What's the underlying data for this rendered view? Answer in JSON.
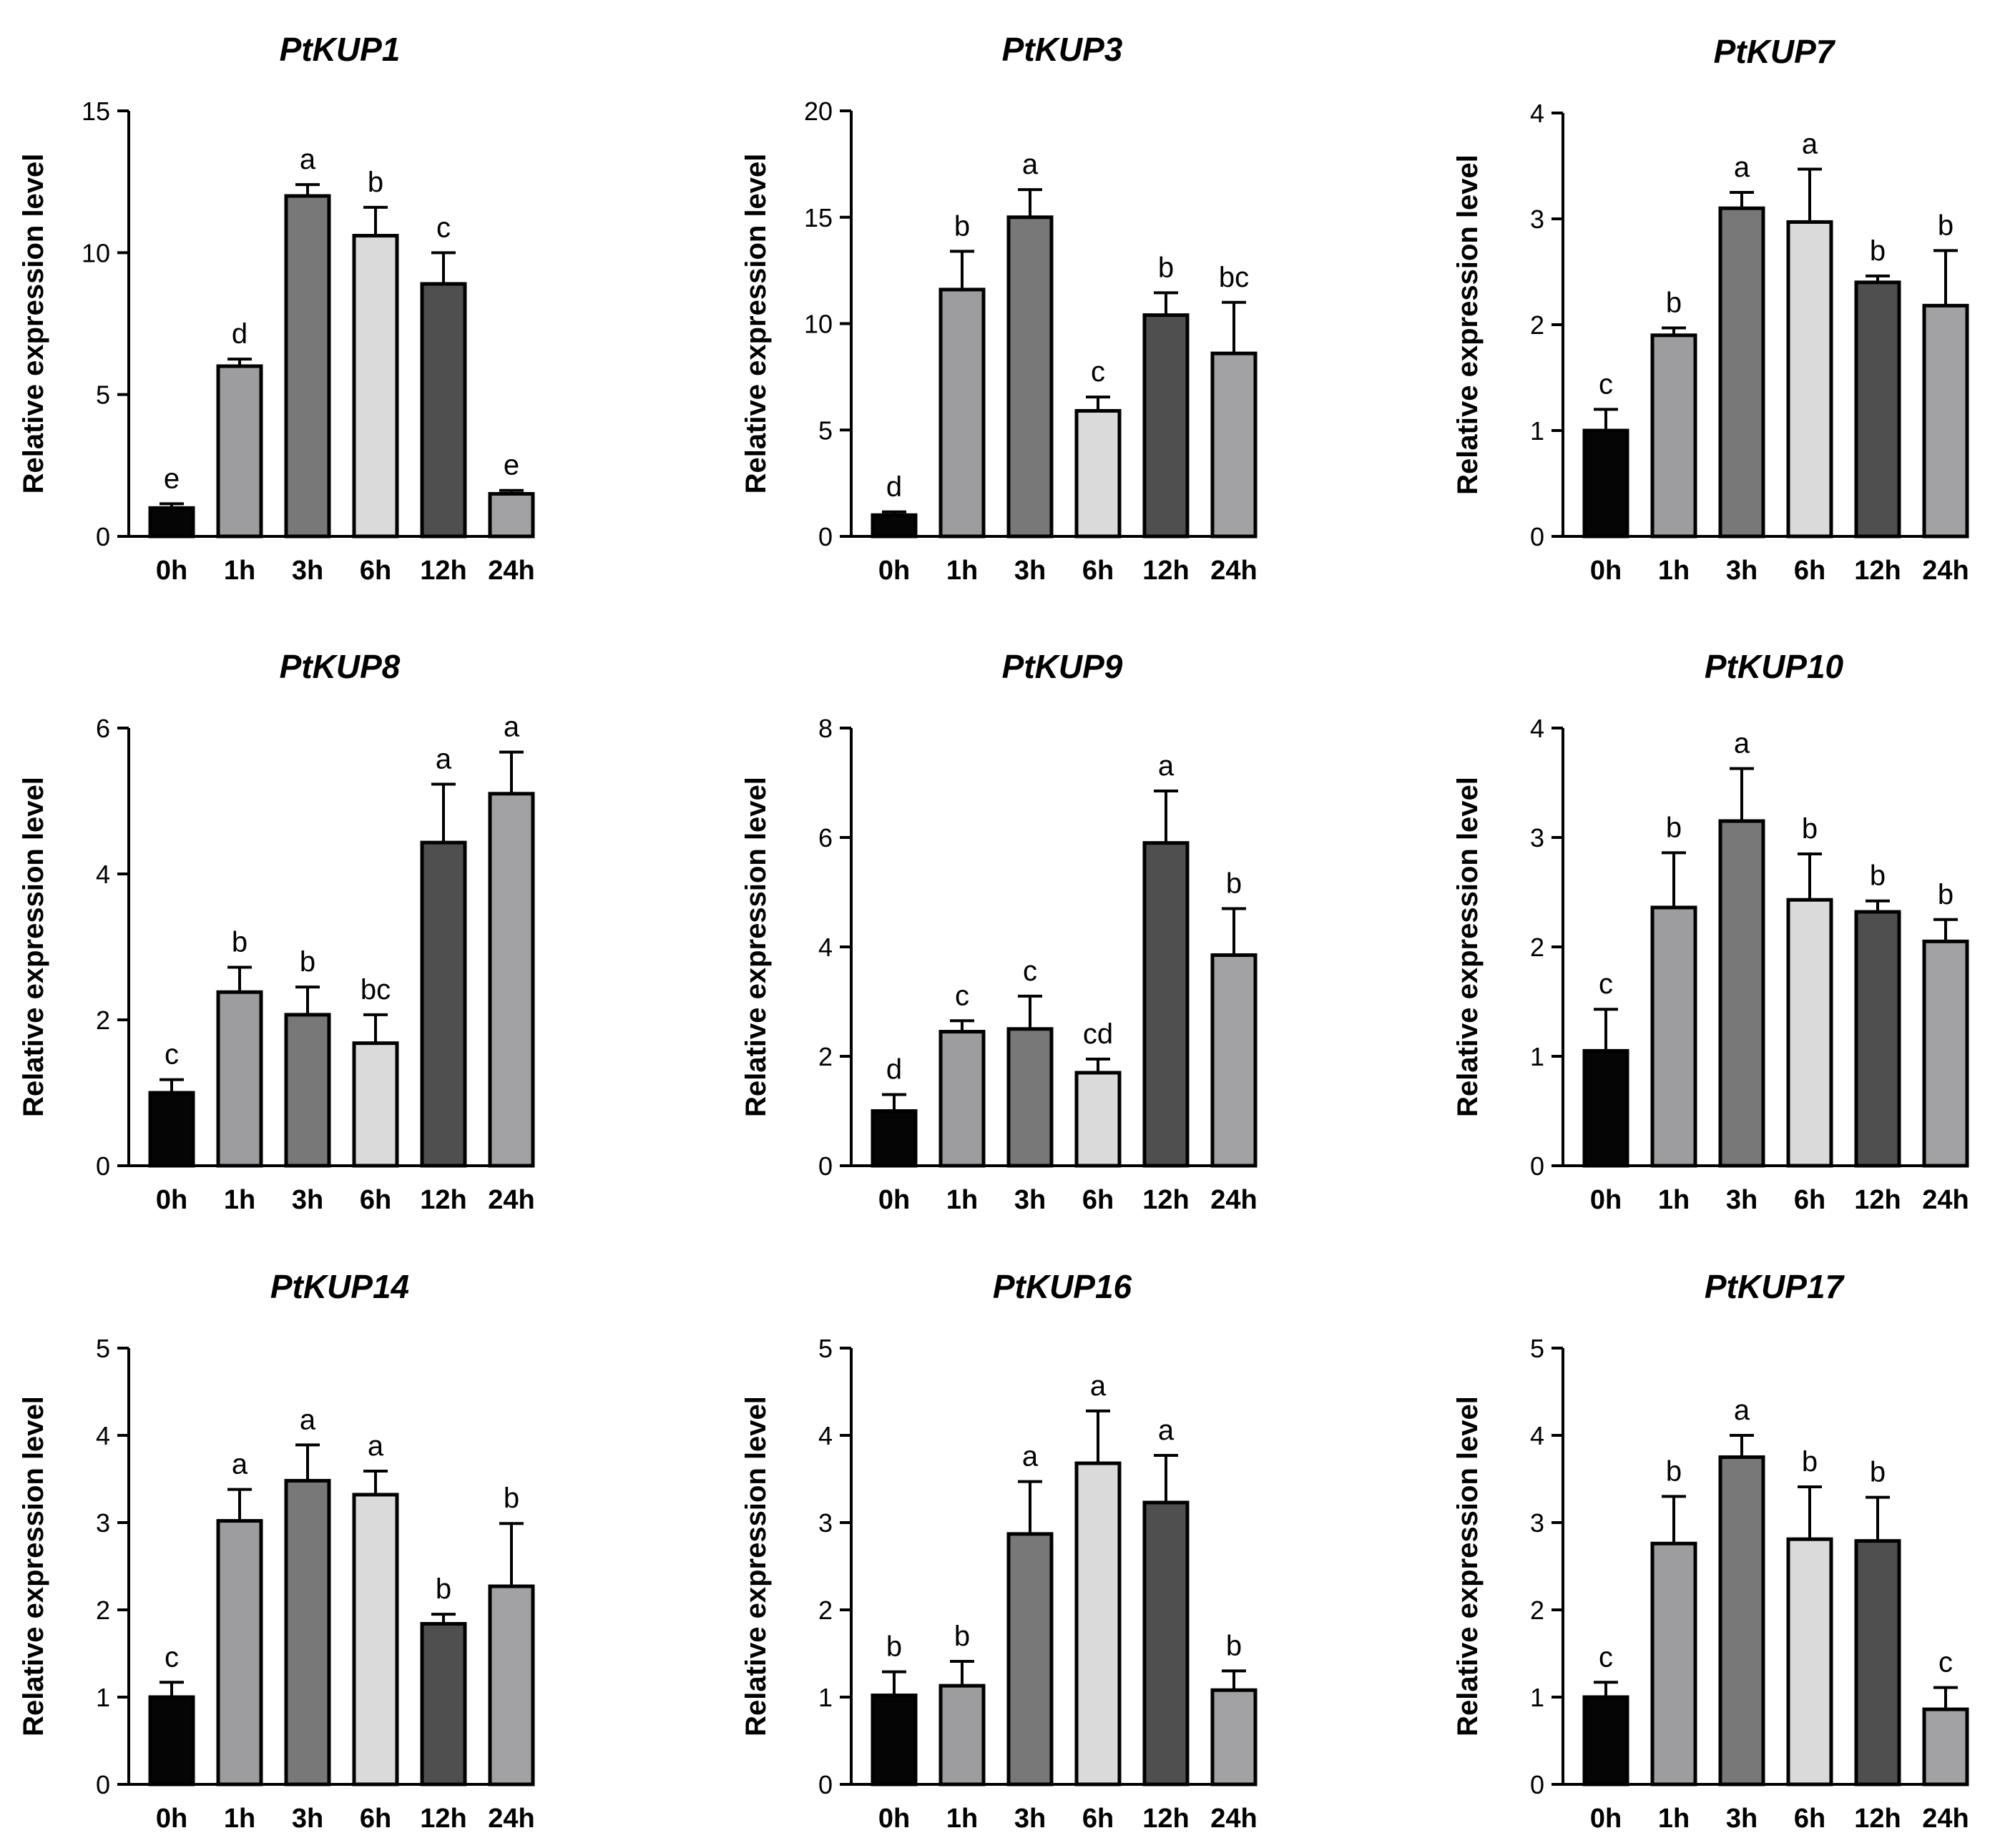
{
  "bar_colors": [
    "#050505",
    "#9d9d9f",
    "#787878",
    "#dadada",
    "#4f4f4f",
    "#a2a2a4"
  ],
  "chart_data": [
    {
      "type": "bar",
      "title": "PtKUP1",
      "xlabel": "",
      "ylabel": "Relative expression level",
      "categories": [
        "0h",
        "1h",
        "3h",
        "6h",
        "12h",
        "24h"
      ],
      "values": [
        1.0,
        6.0,
        12.0,
        10.6,
        8.9,
        1.5
      ],
      "errors": [
        0.15,
        0.25,
        0.4,
        1.0,
        1.1,
        0.12
      ],
      "letters": [
        "e",
        "d",
        "a",
        "b",
        "c",
        "e"
      ],
      "ylim": [
        0,
        15
      ],
      "yticks": [
        "0",
        "5",
        "10",
        "15"
      ],
      "grid": false
    },
    {
      "type": "bar",
      "title": "PtKUP3",
      "xlabel": "",
      "ylabel": "Relative expression level",
      "categories": [
        "0h",
        "1h",
        "3h",
        "6h",
        "12h",
        "24h"
      ],
      "values": [
        1.0,
        11.6,
        15.0,
        5.9,
        10.4,
        8.6
      ],
      "errors": [
        0.15,
        1.8,
        1.3,
        0.65,
        1.05,
        2.4
      ],
      "letters": [
        "d",
        "b",
        "a",
        "c",
        "b",
        "bc"
      ],
      "ylim": [
        0,
        20
      ],
      "yticks": [
        "0",
        "5",
        "10",
        "15",
        "20"
      ],
      "grid": false
    },
    {
      "type": "bar",
      "title": "PtKUP7",
      "xlabel": "",
      "ylabel": "Relative expression level",
      "categories": [
        "0h",
        "1h",
        "3h",
        "6h",
        "12h",
        "24h"
      ],
      "values": [
        1.0,
        1.9,
        3.1,
        2.97,
        2.4,
        2.18
      ],
      "errors": [
        0.2,
        0.07,
        0.15,
        0.5,
        0.06,
        0.52
      ],
      "letters": [
        "c",
        "b",
        "a",
        "a",
        "b",
        "b"
      ],
      "ylim": [
        0,
        4
      ],
      "yticks": [
        "0",
        "1",
        "2",
        "3",
        "4"
      ],
      "grid": false
    },
    {
      "type": "bar",
      "title": "PtKUP8",
      "xlabel": "",
      "ylabel": "Relative expression level",
      "categories": [
        "0h",
        "1h",
        "3h",
        "6h",
        "12h",
        "24h"
      ],
      "values": [
        1.0,
        2.38,
        2.07,
        1.68,
        4.43,
        5.1
      ],
      "errors": [
        0.18,
        0.34,
        0.38,
        0.39,
        0.8,
        0.57
      ],
      "letters": [
        "c",
        "b",
        "b",
        "bc",
        "a",
        "a"
      ],
      "ylim": [
        0,
        6
      ],
      "yticks": [
        "0",
        "2",
        "4",
        "6"
      ],
      "grid": false
    },
    {
      "type": "bar",
      "title": "PtKUP9",
      "xlabel": "",
      "ylabel": "Relative expression level",
      "categories": [
        "0h",
        "1h",
        "3h",
        "6h",
        "12h",
        "24h"
      ],
      "values": [
        1.0,
        2.45,
        2.5,
        1.7,
        5.9,
        3.85
      ],
      "errors": [
        0.3,
        0.2,
        0.6,
        0.25,
        0.95,
        0.85
      ],
      "letters": [
        "d",
        "c",
        "c",
        "cd",
        "a",
        "b"
      ],
      "ylim": [
        0,
        8
      ],
      "yticks": [
        "0",
        "2",
        "4",
        "6",
        "8"
      ],
      "grid": false
    },
    {
      "type": "bar",
      "title": "PtKUP10",
      "xlabel": "",
      "ylabel": "Relative expression level",
      "categories": [
        "0h",
        "1h",
        "3h",
        "6h",
        "12h",
        "24h"
      ],
      "values": [
        1.05,
        2.36,
        3.15,
        2.43,
        2.32,
        2.05
      ],
      "errors": [
        0.38,
        0.5,
        0.48,
        0.42,
        0.1,
        0.2
      ],
      "letters": [
        "c",
        "b",
        "a",
        "b",
        "b",
        "b"
      ],
      "ylim": [
        0,
        4
      ],
      "yticks": [
        "0",
        "1",
        "2",
        "3",
        "4"
      ],
      "grid": false
    },
    {
      "type": "bar",
      "title": "PtKUP14",
      "xlabel": "",
      "ylabel": "Relative expression level",
      "categories": [
        "0h",
        "1h",
        "3h",
        "6h",
        "12h",
        "24h"
      ],
      "values": [
        1.0,
        3.02,
        3.48,
        3.32,
        1.84,
        2.27
      ],
      "errors": [
        0.17,
        0.36,
        0.41,
        0.27,
        0.11,
        0.72
      ],
      "letters": [
        "c",
        "a",
        "a",
        "a",
        "b",
        "b"
      ],
      "ylim": [
        0,
        5
      ],
      "yticks": [
        "0",
        "1",
        "2",
        "3",
        "4",
        "5"
      ],
      "grid": false
    },
    {
      "type": "bar",
      "title": "PtKUP16",
      "xlabel": "",
      "ylabel": "Relative expression level",
      "categories": [
        "0h",
        "1h",
        "3h",
        "6h",
        "12h",
        "24h"
      ],
      "values": [
        1.02,
        1.13,
        2.87,
        3.68,
        3.23,
        1.08
      ],
      "errors": [
        0.27,
        0.28,
        0.6,
        0.6,
        0.54,
        0.22
      ],
      "letters": [
        "b",
        "b",
        "a",
        "a",
        "a",
        "b"
      ],
      "ylim": [
        0,
        5
      ],
      "yticks": [
        "0",
        "1",
        "2",
        "3",
        "4",
        "5"
      ],
      "grid": false
    },
    {
      "type": "bar",
      "title": "PtKUP17",
      "xlabel": "",
      "ylabel": "Relative expression level",
      "categories": [
        "0h",
        "1h",
        "3h",
        "6h",
        "12h",
        "24h"
      ],
      "values": [
        1.0,
        2.76,
        3.75,
        2.81,
        2.79,
        0.86
      ],
      "errors": [
        0.17,
        0.54,
        0.25,
        0.6,
        0.5,
        0.25
      ],
      "letters": [
        "c",
        "b",
        "a",
        "b",
        "b",
        "c"
      ],
      "ylim": [
        0,
        5
      ],
      "yticks": [
        "0",
        "1",
        "2",
        "3",
        "4",
        "5"
      ],
      "grid": false
    }
  ]
}
